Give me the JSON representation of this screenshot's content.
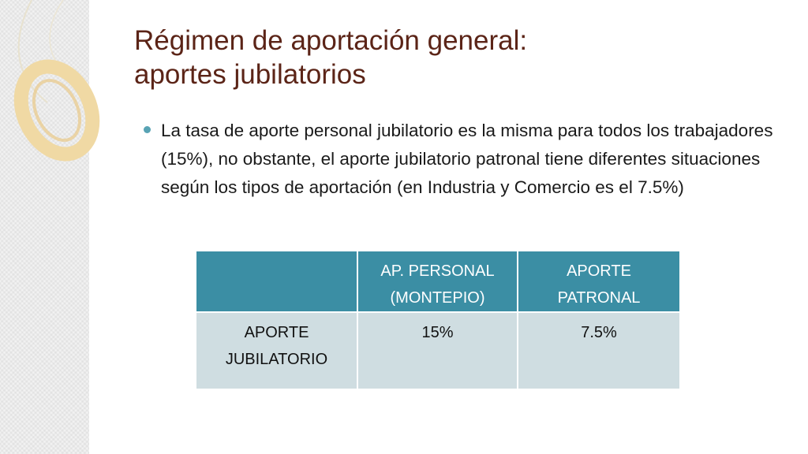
{
  "slide": {
    "title_line1": "Régimen de aportación general:",
    "title_line2": "aportes jubilatorios",
    "bullet": "La tasa de aporte personal jubilatorio es la misma para todos los trabajadores (15%), no obstante, el aporte jubilatorio patronal tiene diferentes situaciones según los tipos de aportación (en Industria y Comercio es el 7.5%)"
  },
  "table": {
    "headers": [
      "",
      "AP. PERSONAL (MONTEPIO)",
      "APORTE PATRONAL"
    ],
    "rows": [
      [
        "APORTE JUBILATORIO",
        "15%",
        "7.5%"
      ]
    ]
  },
  "colors": {
    "title": "#5b2417",
    "header_bg": "#3b8ea4",
    "row_bg": "#cfdde1",
    "bullet": "#58a3b4"
  }
}
